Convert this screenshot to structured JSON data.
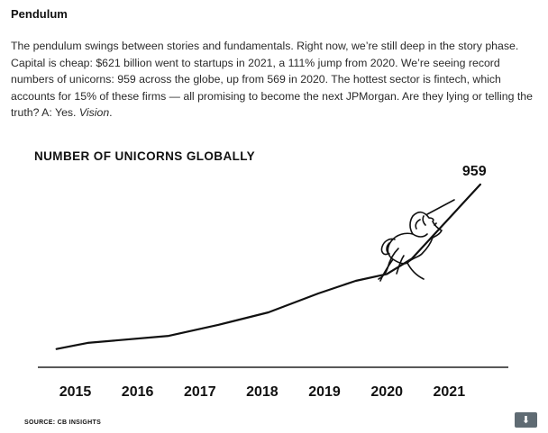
{
  "article": {
    "heading": "Pendulum",
    "paragraph_main": "The pendulum swings between stories and fundamentals. Right now, we’re still deep in the story phase. Capital is cheap: $621 billion went to startups in 2021, a 111% jump from 2020. We’re seeing record numbers of unicorns: 959 across the globe, up from 569 in 2020. The hottest sector is fintech, which accounts for 15% of these firms — all promising to become the next JPMorgan. Are they lying or telling the truth? A: Yes. ",
    "paragraph_italic": "Vision",
    "paragraph_end": "."
  },
  "figure": {
    "source": "SOURCE: CB INSIGHTS",
    "download_icon": "download-arrow-icon",
    "illustration": "unicorn-illustration"
  },
  "chart_data": {
    "type": "line",
    "title": "NUMBER OF UNICORNS GLOBALLY",
    "xlabel": "",
    "ylabel": "",
    "x_ticks": [
      "2015",
      "2016",
      "2017",
      "2018",
      "2019",
      "2020",
      "2021"
    ],
    "series": [
      {
        "x": [
          2014.7,
          2015.2,
          2016.5,
          2017.3,
          2018.1,
          2018.9,
          2019.5,
          2020,
          2020.4,
          2021.5
        ],
        "values": [
          96,
          128,
          165,
          223,
          288,
          387,
          453,
          489,
          569,
          959
        ]
      }
    ],
    "annotation": "959",
    "xlim": [
      2014.4,
      2021.95
    ],
    "ylim": [
      0,
      1100
    ],
    "grid": false,
    "line_color": "#111111"
  }
}
